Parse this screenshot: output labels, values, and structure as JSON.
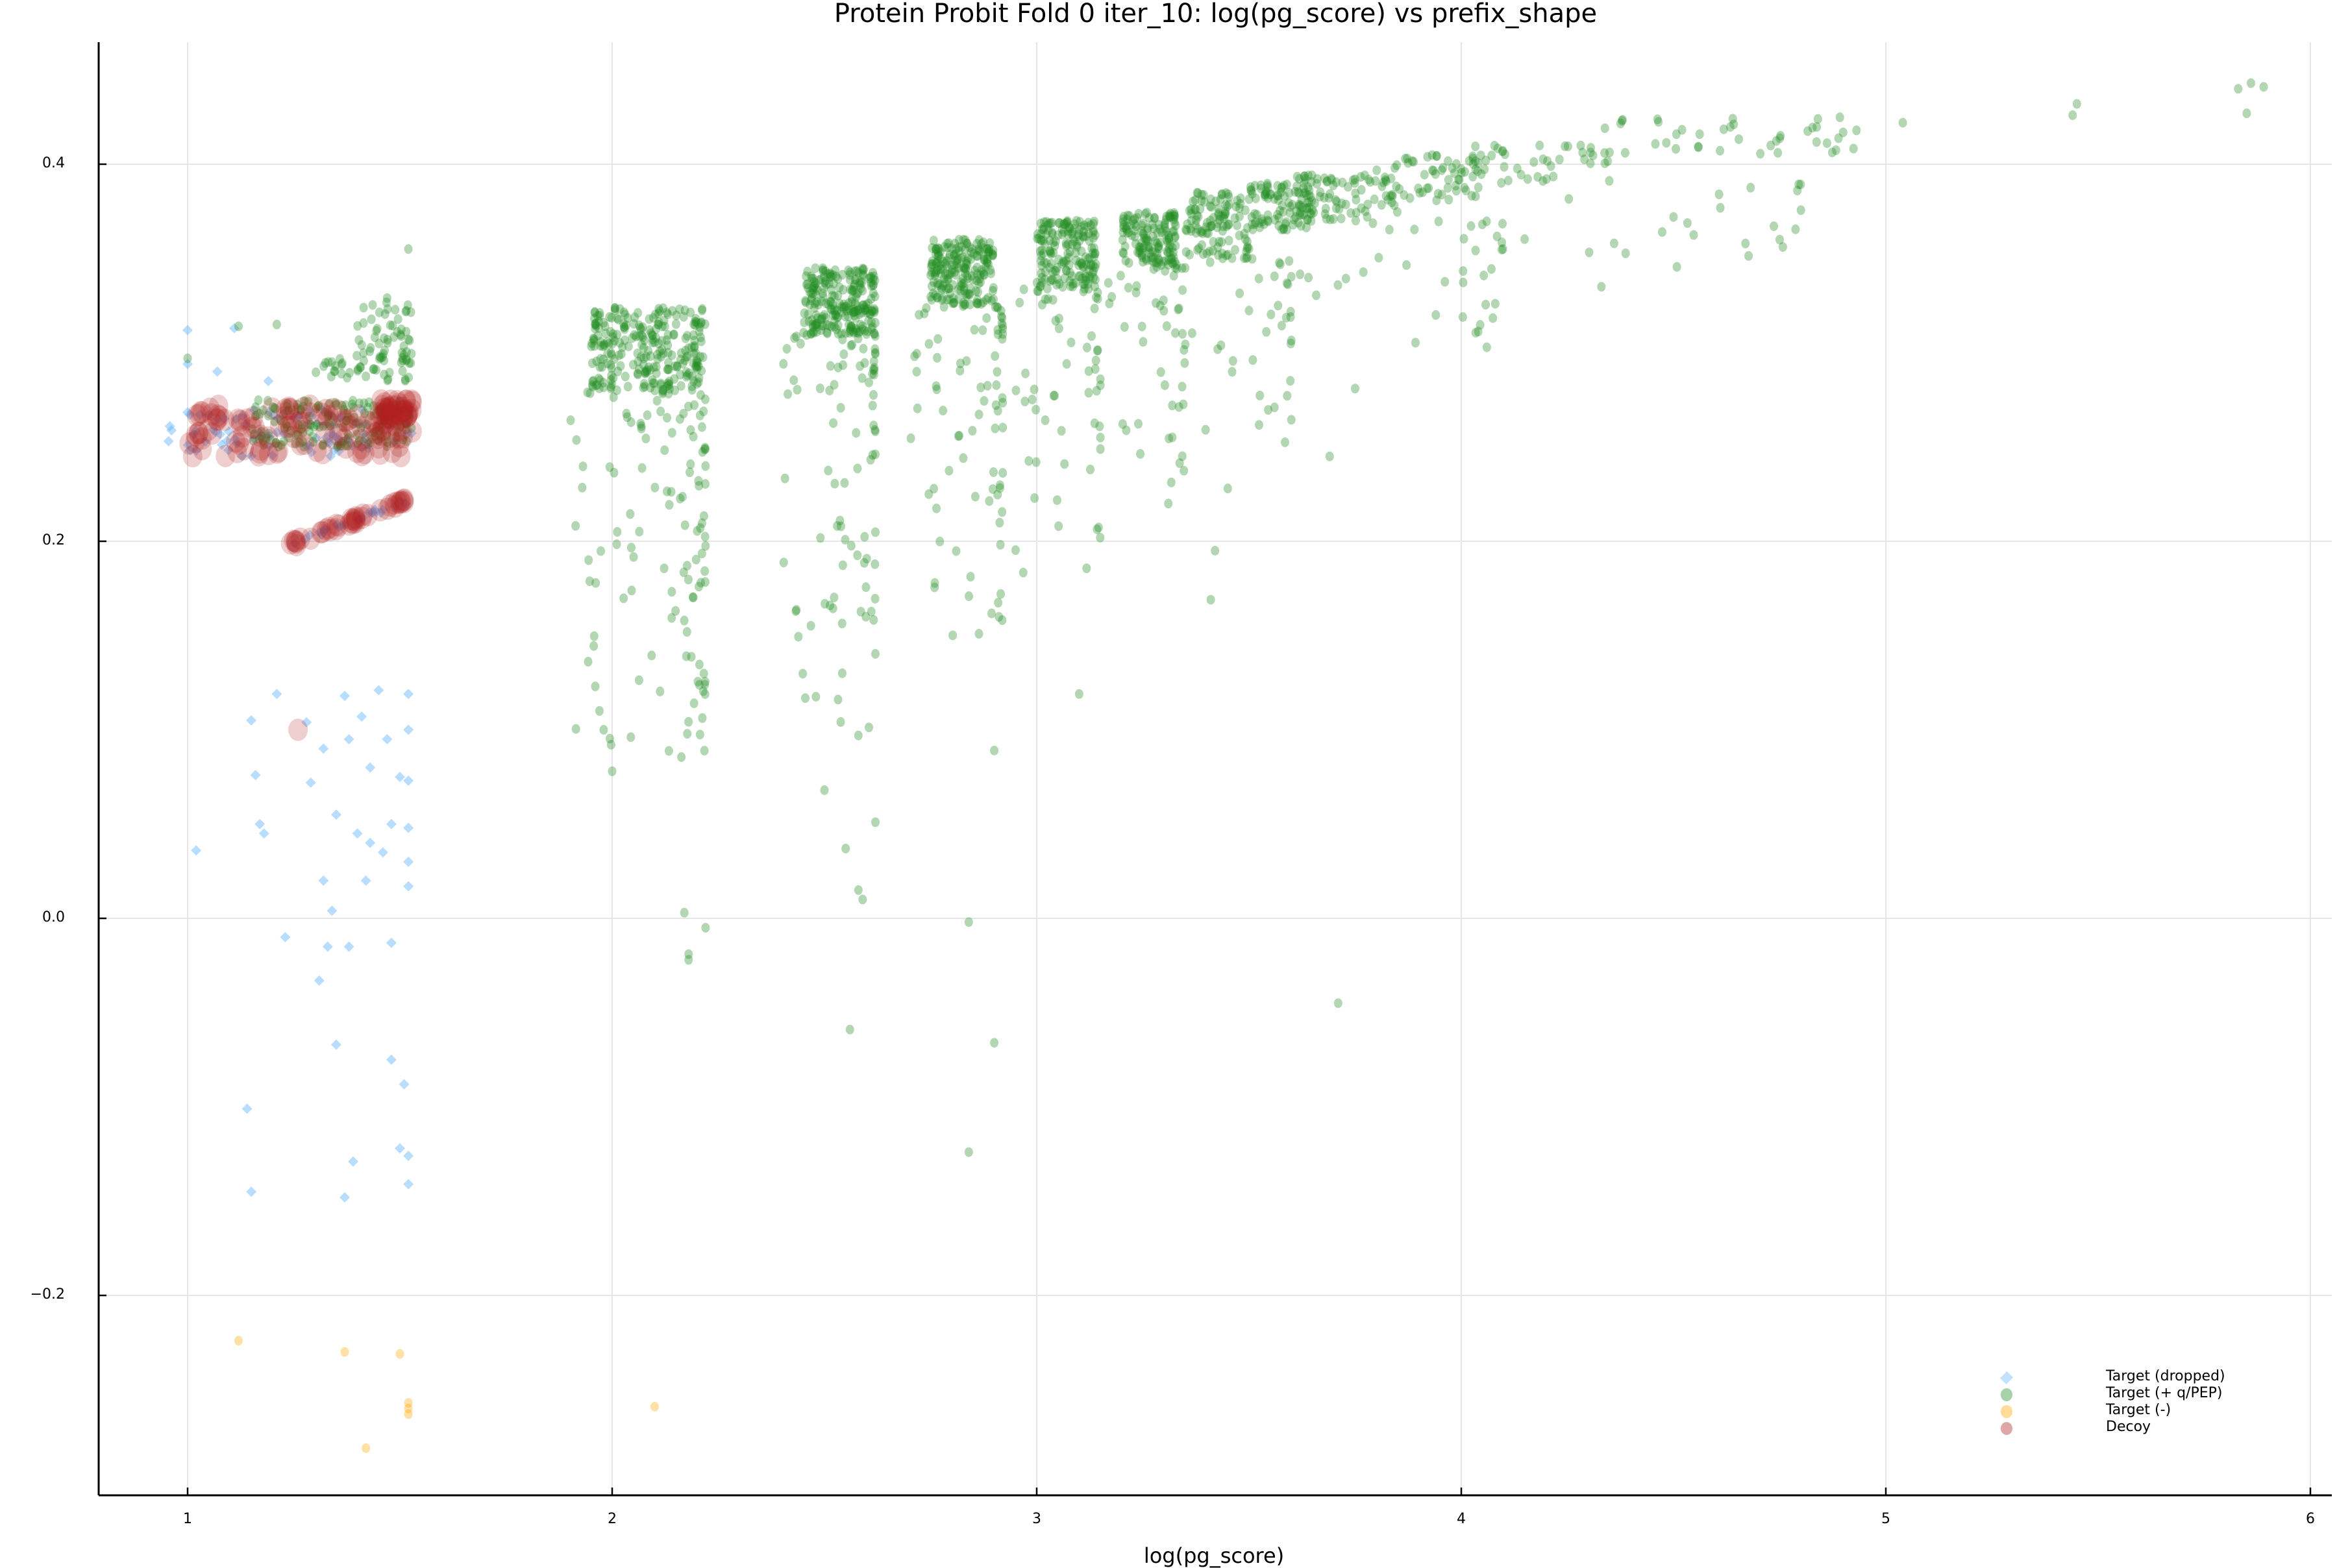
{
  "chart_data": {
    "type": "scatter",
    "title": "Protein Probit Fold 0 iter_10: log(pg_score) vs prefix_shape",
    "xlabel": "log(pg_score)",
    "ylabel": "",
    "xlim": [
      0.8,
      6.05
    ],
    "ylim": [
      -0.3,
      0.465
    ],
    "xticks": [
      1,
      2,
      3,
      4,
      5,
      6
    ],
    "yticks": [
      -0.2,
      0.0,
      0.2,
      0.4
    ],
    "ytick_labels": [
      "−0.2",
      "0.0",
      "0.2",
      "0.4"
    ],
    "grid": true,
    "legend_position": "bottom-right",
    "series": [
      {
        "name": "Target (dropped)",
        "marker": "diamond",
        "color": "#64b4ff",
        "alpha": 0.45,
        "clusters": [
          {
            "x": [
              0.95,
              1.53
            ],
            "y": [
              0.245,
              0.27
            ],
            "n": 90
          },
          {
            "x": [
              1.24,
              1.52
            ],
            "y": [
              0.198,
              0.222
            ],
            "n": 25,
            "line": true
          }
        ],
        "points": [
          [
            1.0,
            0.312
          ],
          [
            1.11,
            0.313
          ],
          [
            1.0,
            0.294
          ],
          [
            1.07,
            0.29
          ],
          [
            1.19,
            0.285
          ],
          [
            1.21,
            0.119
          ],
          [
            1.37,
            0.118
          ],
          [
            1.45,
            0.121
          ],
          [
            1.52,
            0.119
          ],
          [
            1.15,
            0.105
          ],
          [
            1.28,
            0.104
          ],
          [
            1.41,
            0.107
          ],
          [
            1.47,
            0.095
          ],
          [
            1.52,
            0.1
          ],
          [
            1.32,
            0.09
          ],
          [
            1.38,
            0.095
          ],
          [
            1.16,
            0.076
          ],
          [
            1.29,
            0.072
          ],
          [
            1.43,
            0.08
          ],
          [
            1.5,
            0.075
          ],
          [
            1.52,
            0.073
          ],
          [
            1.17,
            0.05
          ],
          [
            1.35,
            0.055
          ],
          [
            1.4,
            0.045
          ],
          [
            1.48,
            0.05
          ],
          [
            1.52,
            0.048
          ],
          [
            1.02,
            0.036
          ],
          [
            1.18,
            0.045
          ],
          [
            1.43,
            0.04
          ],
          [
            1.46,
            0.035
          ],
          [
            1.52,
            0.03
          ],
          [
            1.32,
            0.02
          ],
          [
            1.42,
            0.02
          ],
          [
            1.52,
            0.017
          ],
          [
            1.34,
            0.004
          ],
          [
            1.23,
            -0.01
          ],
          [
            1.33,
            -0.015
          ],
          [
            1.38,
            -0.015
          ],
          [
            1.48,
            -0.013
          ],
          [
            1.31,
            -0.033
          ],
          [
            1.35,
            -0.067
          ],
          [
            1.48,
            -0.075
          ],
          [
            1.51,
            -0.088
          ],
          [
            1.14,
            -0.101
          ],
          [
            1.5,
            -0.122
          ],
          [
            1.52,
            -0.126
          ],
          [
            1.39,
            -0.129
          ],
          [
            1.15,
            -0.145
          ],
          [
            1.37,
            -0.148
          ],
          [
            1.52,
            -0.141
          ]
        ]
      },
      {
        "name": "Target (+ q/PEP)",
        "marker": "circle",
        "color": "#228b22",
        "alpha": 0.35,
        "clusters": [
          {
            "x": [
              1.15,
              1.53
            ],
            "y": [
              0.25,
              0.275
            ],
            "n": 160
          },
          {
            "x": [
              1.3,
              1.53
            ],
            "y": [
              0.285,
              0.3
            ],
            "n": 50
          },
          {
            "x": [
              1.4,
              1.53
            ],
            "y": [
              0.3,
              0.33
            ],
            "n": 40
          },
          {
            "x": [
              1.95,
              2.22
            ],
            "y": [
              0.28,
              0.325
            ],
            "n": 260
          },
          {
            "x": [
              2.45,
              2.62
            ],
            "y": [
              0.31,
              0.345
            ],
            "n": 230
          },
          {
            "x": [
              2.75,
              2.9
            ],
            "y": [
              0.325,
              0.36
            ],
            "n": 200
          },
          {
            "x": [
              3.0,
              3.14
            ],
            "y": [
              0.335,
              0.37
            ],
            "n": 170
          },
          {
            "x": [
              3.2,
              3.33
            ],
            "y": [
              0.345,
              0.375
            ],
            "n": 140
          },
          {
            "x": [
              3.35,
              3.5
            ],
            "y": [
              0.35,
              0.385
            ],
            "n": 110
          },
          {
            "x": [
              3.5,
              3.65
            ],
            "y": [
              0.365,
              0.39
            ],
            "n": 90
          },
          {
            "x": [
              3.6,
              3.85
            ],
            "y": [
              0.37,
              0.395
            ],
            "n": 80
          },
          {
            "x": [
              3.8,
              4.05
            ],
            "y": [
              0.38,
              0.405
            ],
            "n": 60
          },
          {
            "x": [
              4.0,
              4.35
            ],
            "y": [
              0.39,
              0.41
            ],
            "n": 45
          },
          {
            "x": [
              4.3,
              4.95
            ],
            "y": [
              0.405,
              0.425
            ],
            "n": 40
          }
        ],
        "tails": [
          {
            "x": [
              1.9,
              2.22
            ],
            "y": [
              0.08,
              0.28
            ],
            "n": 120
          },
          {
            "x": [
              2.4,
              2.62
            ],
            "y": [
              0.1,
              0.31
            ],
            "n": 90
          },
          {
            "x": [
              2.7,
              2.92
            ],
            "y": [
              0.15,
              0.325
            ],
            "n": 80
          },
          {
            "x": [
              2.95,
              3.15
            ],
            "y": [
              0.18,
              0.335
            ],
            "n": 60
          },
          {
            "x": [
              3.15,
              3.35
            ],
            "y": [
              0.22,
              0.345
            ],
            "n": 45
          },
          {
            "x": [
              3.35,
              3.6
            ],
            "y": [
              0.25,
              0.35
            ],
            "n": 35
          },
          {
            "x": [
              3.6,
              4.1
            ],
            "y": [
              0.3,
              0.37
            ],
            "n": 35
          },
          {
            "x": [
              4.1,
              4.8
            ],
            "y": [
              0.34,
              0.39
            ],
            "n": 20
          }
        ],
        "points": [
          [
            1.97,
            0.11
          ],
          [
            1.98,
            0.1
          ],
          [
            2.0,
            0.078
          ],
          [
            2.17,
            0.003
          ],
          [
            2.18,
            -0.022
          ],
          [
            2.18,
            -0.019
          ],
          [
            2.22,
            -0.005
          ],
          [
            2.5,
            0.068
          ],
          [
            2.55,
            0.037
          ],
          [
            2.56,
            -0.059
          ],
          [
            2.58,
            0.015
          ],
          [
            2.59,
            0.01
          ],
          [
            2.62,
            0.051
          ],
          [
            2.58,
            0.097
          ],
          [
            2.84,
            -0.002
          ],
          [
            2.84,
            -0.124
          ],
          [
            2.9,
            -0.066
          ],
          [
            2.9,
            0.089
          ],
          [
            3.1,
            0.119
          ],
          [
            3.42,
            0.195
          ],
          [
            3.41,
            0.169
          ],
          [
            3.71,
            -0.045
          ],
          [
            5.44,
            0.426
          ],
          [
            5.45,
            0.432
          ],
          [
            5.83,
            0.44
          ],
          [
            5.86,
            0.443
          ],
          [
            5.89,
            0.441
          ],
          [
            5.85,
            0.427
          ],
          [
            5.04,
            0.422
          ],
          [
            4.84,
            0.424
          ],
          [
            4.5,
            0.372
          ],
          [
            4.75,
            0.36
          ],
          [
            4.36,
            0.358
          ],
          [
            4.33,
            0.335
          ],
          [
            4.08,
            0.326
          ],
          [
            3.94,
            0.32
          ],
          [
            3.69,
            0.245
          ],
          [
            3.75,
            0.281
          ],
          [
            3.56,
            0.271
          ],
          [
            3.45,
            0.228
          ],
          [
            3.31,
            0.22
          ],
          [
            1.0,
            0.297
          ],
          [
            1.12,
            0.314
          ],
          [
            1.21,
            0.315
          ],
          [
            1.52,
            0.355
          ]
        ]
      },
      {
        "name": "Target (-)",
        "marker": "circle",
        "color": "#ffa500",
        "alpha": 0.35,
        "points": [
          [
            1.12,
            -0.224
          ],
          [
            1.37,
            -0.23
          ],
          [
            1.5,
            -0.231
          ],
          [
            1.52,
            -0.257
          ],
          [
            1.52,
            -0.263
          ],
          [
            1.52,
            -0.26
          ],
          [
            1.42,
            -0.281
          ],
          [
            2.1,
            -0.259
          ]
        ]
      },
      {
        "name": "Decoy",
        "marker": "circle",
        "color": "#b22222",
        "alpha": 0.22,
        "size": "large",
        "clusters": [
          {
            "x": [
              1.0,
              1.53
            ],
            "y": [
              0.245,
              0.272
            ],
            "n": 110
          },
          {
            "x": [
              1.45,
              1.53
            ],
            "y": [
              0.265,
              0.275
            ],
            "n": 40
          },
          {
            "x": [
              1.24,
              1.52
            ],
            "y": [
              0.198,
              0.222
            ],
            "n": 40,
            "line": true
          }
        ],
        "points": [
          [
            1.26,
            0.1
          ]
        ]
      }
    ]
  },
  "title": "Protein Probit Fold 0 iter_10: log(pg_score) vs prefix_shape",
  "xlabel": "log(pg_score)",
  "legend": [
    {
      "label": "Target (dropped)",
      "color": "#64b4ff",
      "marker": "diamond"
    },
    {
      "label": "Target (+ q/PEP)",
      "color": "#228b22",
      "marker": "circle"
    },
    {
      "label": "Target (-)",
      "color": "#ffa500",
      "marker": "circle"
    },
    {
      "label": "Decoy",
      "color": "#b22222",
      "marker": "circle"
    }
  ]
}
